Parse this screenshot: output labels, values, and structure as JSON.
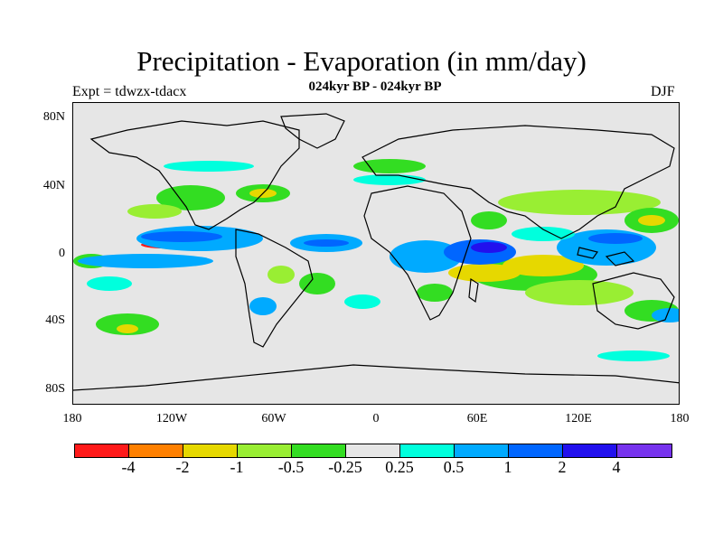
{
  "title": "Precipitation - Evaporation (in mm/day)",
  "subtitle": "024kyr BP - 024kyr BP",
  "left_label": "Expt = tdwzx-tdacx",
  "right_label": "DJF",
  "lat_labels": [
    "80N",
    "40N",
    "0",
    "40S",
    "80S"
  ],
  "lon_labels": [
    "180",
    "120W",
    "60W",
    "0",
    "60E",
    "120E",
    "180"
  ],
  "colorbar": {
    "colors": [
      "#ff1a1a",
      "#ff8000",
      "#e6d800",
      "#99ee33",
      "#33dd22",
      "#e6e6e6",
      "#00ffdd",
      "#00aaff",
      "#0066ff",
      "#2211ee",
      "#7733ee"
    ],
    "labels": [
      "-4",
      "-2",
      "-1",
      "-0.5",
      "-0.25",
      "0.25",
      "0.5",
      "1",
      "2",
      "4"
    ]
  }
}
